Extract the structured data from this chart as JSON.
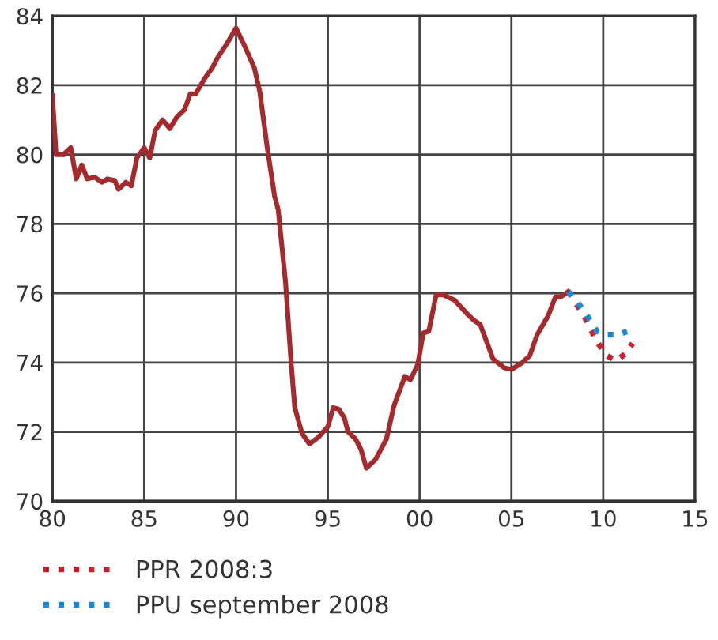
{
  "chart_data": {
    "type": "line",
    "xlim": [
      1980,
      2015
    ],
    "ylim": [
      70,
      84
    ],
    "xticks": [
      {
        "value": 1980,
        "label": "80"
      },
      {
        "value": 1985,
        "label": "85"
      },
      {
        "value": 1990,
        "label": "90"
      },
      {
        "value": 1995,
        "label": "95"
      },
      {
        "value": 2000,
        "label": "00"
      },
      {
        "value": 2005,
        "label": "05"
      },
      {
        "value": 2010,
        "label": "10"
      },
      {
        "value": 2015,
        "label": "15"
      }
    ],
    "yticks": [
      70,
      72,
      74,
      76,
      78,
      80,
      82,
      84
    ],
    "grid": true,
    "legend": "bottom",
    "marker": "none",
    "series": [
      {
        "color": "#a52a2e",
        "line_style": "solid",
        "x": [
          1980.0,
          1980.2,
          1980.6,
          1981.0,
          1981.3,
          1981.6,
          1981.9,
          1982.3,
          1982.7,
          1983.0,
          1983.4,
          1983.6,
          1984.0,
          1984.3,
          1984.6,
          1985.0,
          1985.3,
          1985.6,
          1986.0,
          1986.4,
          1986.8,
          1987.2,
          1987.5,
          1987.8,
          1988.3,
          1988.7,
          1989.0,
          1989.5,
          1990.0,
          1990.5,
          1991.0,
          1991.3,
          1991.7,
          1992.1,
          1992.3,
          1992.7,
          1993.0,
          1993.2,
          1993.6,
          1994.0,
          1994.5,
          1995.0,
          1995.3,
          1995.6,
          1995.9,
          1996.1,
          1996.5,
          1996.8,
          1997.1,
          1997.6,
          1998.2,
          1998.6,
          1999.2,
          1999.5,
          1999.9,
          2000.2,
          2000.5,
          2000.9,
          2001.3,
          2001.9,
          2002.6,
          2003.0,
          2003.3,
          2004.0,
          2004.6,
          2005.0,
          2005.6,
          2006.0,
          2006.4,
          2007.0,
          2007.4,
          2007.7,
          2008.1
        ],
        "values": [
          81.7,
          80.0,
          80.0,
          80.2,
          79.3,
          79.7,
          79.3,
          79.35,
          79.2,
          79.3,
          79.25,
          79.0,
          79.2,
          79.1,
          79.9,
          80.2,
          79.9,
          80.7,
          81.0,
          80.75,
          81.1,
          81.3,
          81.75,
          81.75,
          82.2,
          82.5,
          82.8,
          83.2,
          83.65,
          83.1,
          82.5,
          81.8,
          80.2,
          78.8,
          78.4,
          76.3,
          74.0,
          72.7,
          71.95,
          71.65,
          71.85,
          72.15,
          72.7,
          72.65,
          72.4,
          72.0,
          71.8,
          71.5,
          70.95,
          71.2,
          71.8,
          72.75,
          73.6,
          73.5,
          73.95,
          74.85,
          74.9,
          75.95,
          75.95,
          75.8,
          75.4,
          75.2,
          75.1,
          74.1,
          73.85,
          73.8,
          74.0,
          74.2,
          74.8,
          75.35,
          75.9,
          75.9,
          76.05
        ]
      },
      {
        "name": "PPR 2008:3",
        "color": "#c8202e",
        "line_style": "dotted",
        "x": [
          2008.1,
          2008.95,
          2009.66,
          2010.2,
          2010.7,
          2011.2,
          2011.6
        ],
        "values": [
          76.05,
          75.35,
          74.6,
          74.2,
          74.05,
          74.25,
          74.55
        ]
      },
      {
        "name": "PPU september 2008",
        "color": "#1a8ad4",
        "line_style": "dotted",
        "x": [
          2008.1,
          2008.95,
          2009.66,
          2010.2,
          2010.8,
          2011.3
        ],
        "values": [
          76.05,
          75.5,
          74.9,
          74.8,
          74.8,
          74.9
        ]
      }
    ]
  }
}
